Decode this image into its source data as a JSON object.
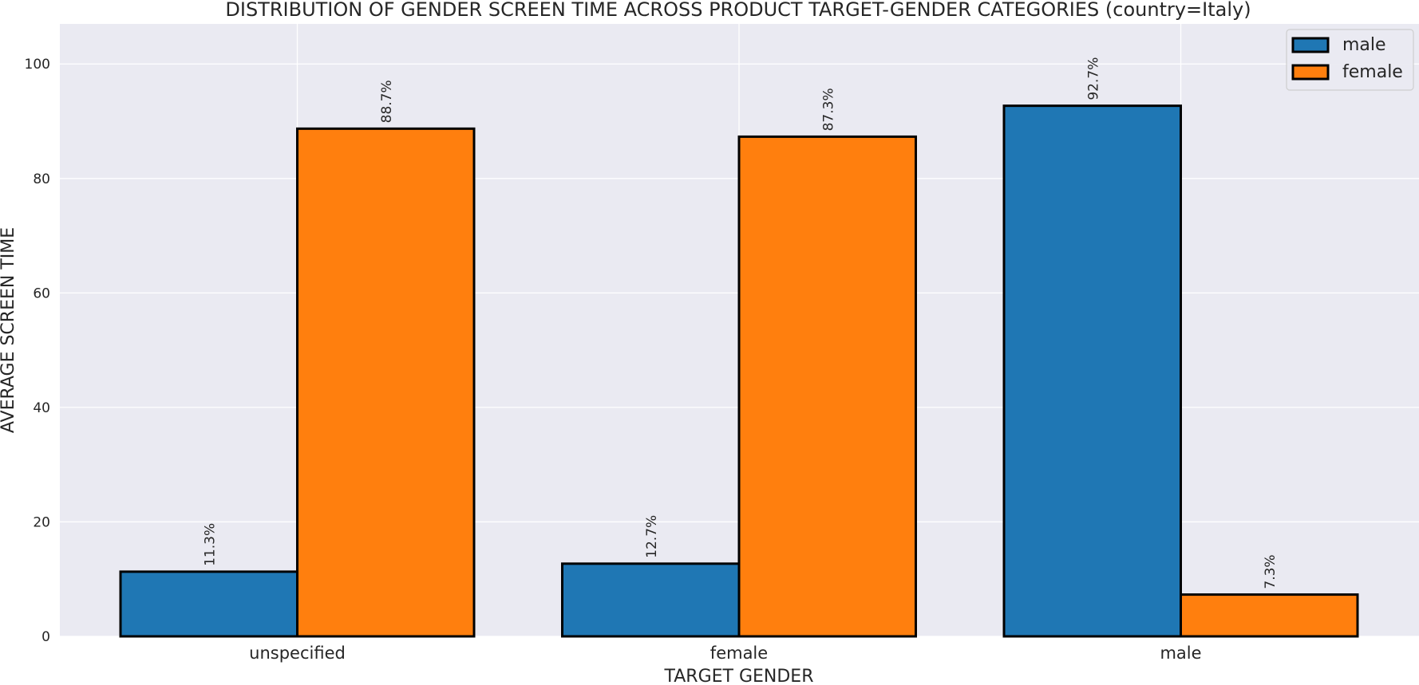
{
  "chart_data": {
    "type": "bar",
    "title": "DISTRIBUTION OF GENDER SCREEN TIME ACROSS PRODUCT TARGET-GENDER CATEGORIES (country=Italy)",
    "xlabel": "TARGET GENDER",
    "ylabel": "AVERAGE SCREEN TIME",
    "categories": [
      "unspecified",
      "female",
      "male"
    ],
    "series": [
      {
        "name": "male",
        "values": [
          11.3,
          12.7,
          92.7
        ],
        "labels": [
          "11.3%",
          "12.7%",
          "92.7%"
        ],
        "color": "#1f77b4"
      },
      {
        "name": "female",
        "values": [
          88.7,
          87.3,
          7.3
        ],
        "labels": [
          "88.7%",
          "87.3%",
          "7.3%"
        ],
        "color": "#ff7f0e"
      }
    ],
    "ylim": [
      0,
      107
    ],
    "yticks": [
      0,
      20,
      40,
      60,
      80,
      100
    ],
    "grid": true,
    "legend": "top-right",
    "background": "#eaeaf2",
    "gridcolor": "#ffffff",
    "edgecolor": "#000000"
  }
}
